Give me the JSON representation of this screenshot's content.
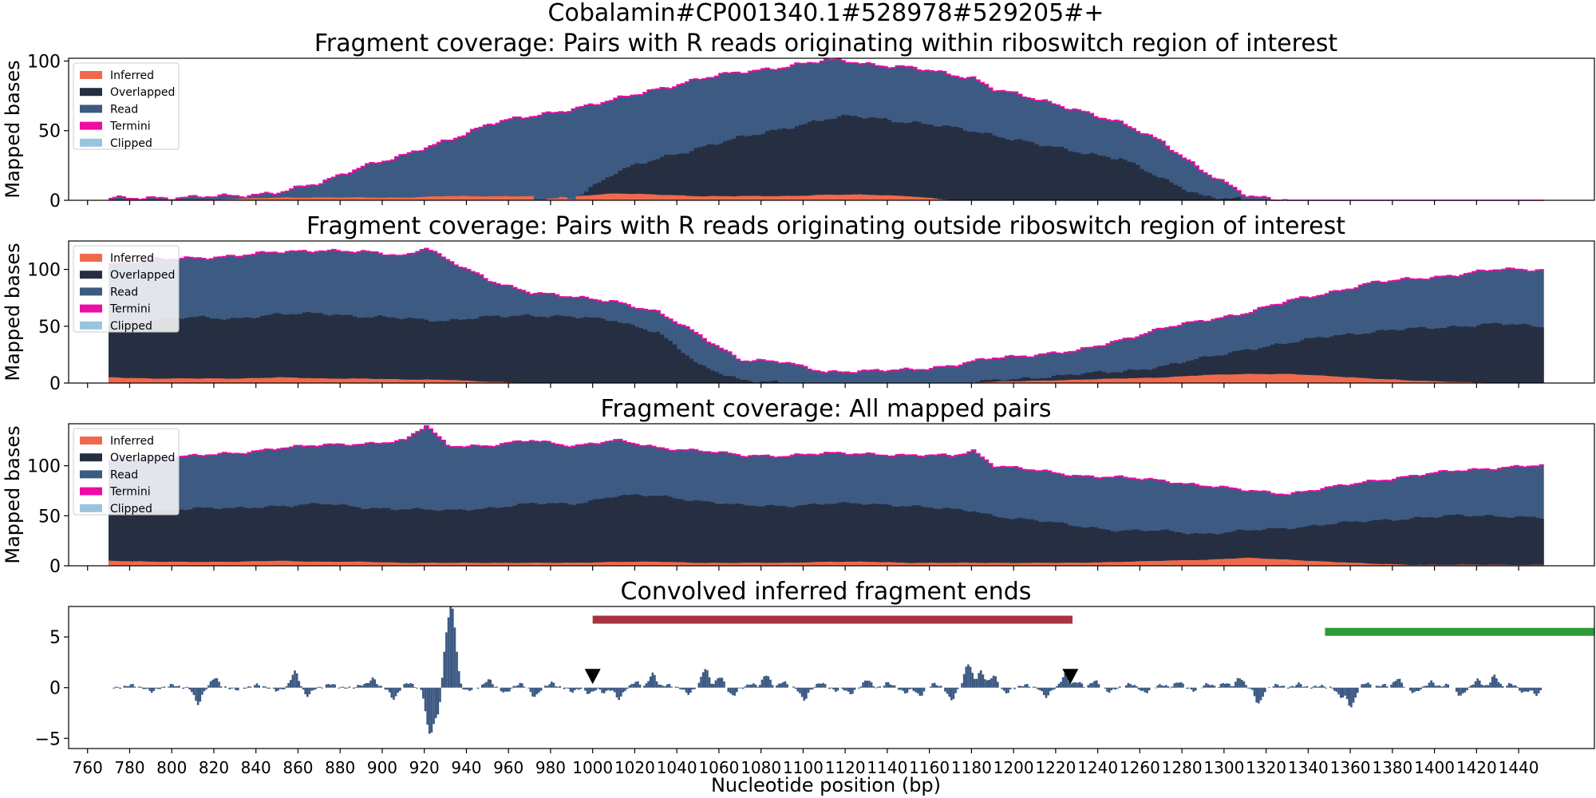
{
  "figure": {
    "suptitle": "Cobalamin#CP001340.1#528978#529205#+"
  },
  "legend": {
    "entries": [
      {
        "name": "Inferred",
        "color": "#ef6a4d"
      },
      {
        "name": "Overlapped",
        "color": "#262f41"
      },
      {
        "name": "Read",
        "color": "#3d5a82"
      },
      {
        "name": "Termini",
        "color": "#ef0ba6"
      },
      {
        "name": "Clipped",
        "color": "#9ac4dd"
      }
    ]
  },
  "colors": {
    "inferred": "#ef6a4d",
    "overlapped": "#262f41",
    "read": "#3d5a82",
    "termini": "#ef0ba6",
    "clipped": "#9ac4dd",
    "signal": "#3d5a82",
    "riboswitch_bar": "#a83240",
    "gene_bar": "#2e9a35",
    "marker": "#000000"
  },
  "xaxis": {
    "label": "Nucleotide position (bp)",
    "range": [
      751,
      1476
    ],
    "ticks": [
      760,
      780,
      800,
      820,
      840,
      860,
      880,
      900,
      920,
      940,
      960,
      980,
      1000,
      1020,
      1040,
      1060,
      1080,
      1100,
      1120,
      1140,
      1160,
      1180,
      1200,
      1220,
      1240,
      1260,
      1280,
      1300,
      1320,
      1340,
      1360,
      1380,
      1400,
      1420,
      1440
    ]
  },
  "chart_data": [
    {
      "type": "area",
      "title": "Fragment coverage: Pairs with R reads originating within riboswitch region of interest",
      "ylabel": "Mapped bases",
      "ylim": [
        0,
        102
      ],
      "yticks": [
        0,
        50,
        100
      ],
      "x": [
        770,
        790,
        810,
        830,
        850,
        870,
        890,
        910,
        930,
        950,
        970,
        990,
        1010,
        1030,
        1050,
        1070,
        1090,
        1110,
        1120,
        1130,
        1150,
        1170,
        1180,
        1190,
        1210,
        1230,
        1250,
        1270,
        1290,
        1310,
        1330,
        1340,
        1350,
        1370,
        1390,
        1410,
        1430,
        1450
      ],
      "series": [
        {
          "name": "Inferred",
          "values": [
            0,
            0,
            0,
            1,
            2,
            2,
            2,
            2,
            3,
            3,
            3,
            3,
            5,
            4,
            3,
            3,
            3,
            4,
            4,
            4,
            3,
            0,
            0,
            0,
            0,
            0,
            0,
            0,
            0,
            0,
            0,
            0,
            0,
            0,
            0,
            0,
            0,
            0
          ]
        },
        {
          "name": "Overlapped",
          "values": [
            0,
            0,
            0,
            0,
            0,
            0,
            0,
            0,
            0,
            0,
            0,
            2,
            20,
            30,
            38,
            45,
            52,
            58,
            60,
            60,
            56,
            52,
            50,
            47,
            40,
            35,
            30,
            15,
            3,
            0,
            0,
            0,
            0,
            0,
            0,
            0,
            0,
            0
          ]
        },
        {
          "name": "Read",
          "values": [
            1,
            2,
            2,
            3,
            6,
            12,
            25,
            32,
            43,
            55,
            60,
            66,
            72,
            80,
            87,
            92,
            96,
            100,
            100,
            98,
            95,
            90,
            88,
            80,
            72,
            65,
            55,
            42,
            20,
            3,
            0,
            0,
            0,
            0,
            0,
            0,
            0,
            0
          ]
        },
        {
          "name": "Termini",
          "values": [
            1,
            2,
            2,
            3,
            6,
            12,
            25,
            32,
            43,
            55,
            60,
            66,
            72,
            80,
            87,
            92,
            96,
            100,
            100,
            98,
            95,
            90,
            88,
            80,
            72,
            65,
            55,
            42,
            20,
            3,
            0,
            0,
            0,
            0,
            0,
            0,
            0,
            0
          ]
        }
      ]
    },
    {
      "type": "area",
      "title": "Fragment coverage: Pairs with R reads originating outside riboswitch region of interest",
      "ylabel": "Mapped bases",
      "ylim": [
        0,
        125
      ],
      "yticks": [
        0,
        50,
        100
      ],
      "x": [
        770,
        790,
        810,
        830,
        850,
        870,
        890,
        910,
        920,
        930,
        950,
        970,
        990,
        1010,
        1030,
        1050,
        1070,
        1090,
        1110,
        1130,
        1150,
        1170,
        1190,
        1210,
        1230,
        1250,
        1270,
        1290,
        1310,
        1330,
        1350,
        1370,
        1390,
        1410,
        1430,
        1450
      ],
      "series": [
        {
          "name": "Inferred",
          "values": [
            5,
            4,
            4,
            4,
            5,
            4,
            4,
            3,
            3,
            3,
            1,
            0,
            0,
            0,
            0,
            0,
            0,
            0,
            0,
            0,
            0,
            0,
            1,
            2,
            3,
            4,
            5,
            7,
            8,
            8,
            6,
            4,
            2,
            1,
            0,
            0
          ]
        },
        {
          "name": "Overlapped",
          "values": [
            52,
            55,
            58,
            57,
            60,
            62,
            58,
            57,
            56,
            55,
            58,
            60,
            58,
            55,
            45,
            15,
            3,
            0,
            0,
            0,
            0,
            0,
            2,
            5,
            8,
            10,
            15,
            22,
            30,
            35,
            42,
            45,
            48,
            50,
            52,
            50
          ]
        },
        {
          "name": "Read",
          "values": [
            105,
            108,
            110,
            112,
            115,
            117,
            115,
            112,
            120,
            108,
            90,
            80,
            75,
            72,
            62,
            42,
            20,
            18,
            10,
            10,
            12,
            15,
            22,
            25,
            28,
            38,
            48,
            55,
            62,
            72,
            80,
            88,
            92,
            95,
            100,
            100
          ]
        },
        {
          "name": "Termini",
          "values": [
            105,
            108,
            110,
            112,
            115,
            117,
            115,
            112,
            120,
            108,
            90,
            80,
            75,
            72,
            62,
            42,
            20,
            18,
            10,
            10,
            12,
            15,
            22,
            25,
            28,
            38,
            48,
            55,
            62,
            72,
            80,
            88,
            92,
            95,
            100,
            100
          ]
        }
      ]
    },
    {
      "type": "area",
      "title": "Fragment coverage: All mapped pairs",
      "ylabel": "Mapped bases",
      "ylim": [
        0,
        142
      ],
      "yticks": [
        0,
        50,
        100
      ],
      "x": [
        770,
        790,
        810,
        830,
        850,
        870,
        890,
        910,
        920,
        930,
        950,
        970,
        990,
        1010,
        1030,
        1050,
        1070,
        1090,
        1110,
        1130,
        1150,
        1170,
        1180,
        1190,
        1210,
        1230,
        1250,
        1270,
        1290,
        1310,
        1330,
        1350,
        1370,
        1390,
        1410,
        1430,
        1450
      ],
      "series": [
        {
          "name": "Inferred",
          "values": [
            5,
            4,
            4,
            4,
            5,
            4,
            4,
            3,
            3,
            3,
            3,
            3,
            3,
            4,
            4,
            3,
            3,
            3,
            4,
            4,
            3,
            3,
            3,
            3,
            3,
            3,
            4,
            5,
            6,
            8,
            6,
            4,
            2,
            1,
            1,
            1,
            1
          ]
        },
        {
          "name": "Overlapped",
          "values": [
            52,
            55,
            58,
            57,
            60,
            62,
            58,
            57,
            56,
            55,
            58,
            62,
            62,
            70,
            70,
            65,
            60,
            60,
            62,
            62,
            60,
            56,
            55,
            50,
            45,
            40,
            35,
            35,
            32,
            35,
            38,
            42,
            45,
            48,
            50,
            50,
            48
          ]
        },
        {
          "name": "Read",
          "values": [
            105,
            108,
            110,
            112,
            118,
            120,
            122,
            125,
            140,
            120,
            120,
            125,
            120,
            125,
            118,
            115,
            110,
            110,
            112,
            112,
            110,
            110,
            115,
            100,
            95,
            90,
            88,
            85,
            80,
            75,
            72,
            78,
            85,
            90,
            95,
            98,
            100
          ]
        },
        {
          "name": "Termini",
          "values": [
            105,
            108,
            110,
            112,
            118,
            120,
            122,
            125,
            140,
            120,
            120,
            125,
            120,
            125,
            118,
            115,
            110,
            110,
            112,
            112,
            110,
            110,
            115,
            100,
            95,
            90,
            88,
            85,
            80,
            75,
            72,
            78,
            85,
            90,
            95,
            98,
            100
          ]
        }
      ]
    },
    {
      "type": "bar",
      "title": "Convolved inferred fragment ends",
      "xlabel": "Nucleotide position (bp)",
      "ylim": [
        -6,
        8
      ],
      "yticks": [
        -5,
        0,
        5
      ],
      "signal": [
        [
          780,
          0.3
        ],
        [
          790,
          -0.4
        ],
        [
          800,
          0.3
        ],
        [
          812,
          -1.6
        ],
        [
          820,
          1.0
        ],
        [
          830,
          -0.2
        ],
        [
          840,
          0.3
        ],
        [
          850,
          -0.3
        ],
        [
          858,
          1.6
        ],
        [
          864,
          -0.8
        ],
        [
          875,
          0.4
        ],
        [
          890,
          0.3
        ],
        [
          895,
          0.9
        ],
        [
          905,
          -1.1
        ],
        [
          912,
          0.5
        ],
        [
          922,
          -4.4
        ],
        [
          926,
          -2.6
        ],
        [
          930,
          4.2
        ],
        [
          933,
          6.8
        ],
        [
          940,
          -0.3
        ],
        [
          950,
          0.8
        ],
        [
          958,
          -0.5
        ],
        [
          965,
          0.4
        ],
        [
          972,
          -0.9
        ],
        [
          980,
          0.5
        ],
        [
          990,
          -0.4
        ],
        [
          998,
          -0.6
        ],
        [
          1005,
          -0.5
        ],
        [
          1012,
          -1.1
        ],
        [
          1020,
          0.6
        ],
        [
          1028,
          1.4
        ],
        [
          1035,
          0.3
        ],
        [
          1045,
          -0.6
        ],
        [
          1053,
          1.9
        ],
        [
          1060,
          1.1
        ],
        [
          1066,
          -0.8
        ],
        [
          1075,
          0.4
        ],
        [
          1082,
          1.3
        ],
        [
          1090,
          0.6
        ],
        [
          1100,
          -1.2
        ],
        [
          1108,
          0.5
        ],
        [
          1115,
          -0.3
        ],
        [
          1122,
          -0.6
        ],
        [
          1130,
          0.8
        ],
        [
          1140,
          0.5
        ],
        [
          1148,
          -0.5
        ],
        [
          1155,
          -0.8
        ],
        [
          1162,
          0.4
        ],
        [
          1170,
          -1.2
        ],
        [
          1178,
          2.4
        ],
        [
          1184,
          1.6
        ],
        [
          1190,
          1.2
        ],
        [
          1196,
          -0.5
        ],
        [
          1205,
          0.3
        ],
        [
          1215,
          -0.9
        ],
        [
          1224,
          1.3
        ],
        [
          1230,
          0.6
        ],
        [
          1238,
          0.7
        ],
        [
          1245,
          -0.4
        ],
        [
          1255,
          0.4
        ],
        [
          1262,
          -0.5
        ],
        [
          1270,
          0.3
        ],
        [
          1278,
          0.6
        ],
        [
          1285,
          -0.3
        ],
        [
          1292,
          0.4
        ],
        [
          1300,
          0.5
        ],
        [
          1307,
          1.0
        ],
        [
          1316,
          -1.6
        ],
        [
          1325,
          0.3
        ],
        [
          1335,
          0.4
        ],
        [
          1345,
          0.2
        ],
        [
          1355,
          -0.9
        ],
        [
          1360,
          -1.9
        ],
        [
          1367,
          0.5
        ],
        [
          1375,
          0.3
        ],
        [
          1382,
          0.9
        ],
        [
          1390,
          -0.5
        ],
        [
          1398,
          0.6
        ],
        [
          1405,
          0.3
        ],
        [
          1412,
          -0.8
        ],
        [
          1420,
          0.8
        ],
        [
          1428,
          1.2
        ],
        [
          1436,
          0.4
        ],
        [
          1442,
          -0.5
        ],
        [
          1448,
          -0.7
        ]
      ],
      "hbars": [
        {
          "name": "riboswitch",
          "start": 1000,
          "end": 1228,
          "y": 6.7,
          "color": "#a83240"
        },
        {
          "name": "gene",
          "start": 1348,
          "end": 1476,
          "y": 5.5,
          "color": "#2e9a35"
        }
      ],
      "markers": [
        {
          "x": 1000,
          "y": 0.9
        },
        {
          "x": 1227,
          "y": 0.9
        }
      ]
    }
  ]
}
